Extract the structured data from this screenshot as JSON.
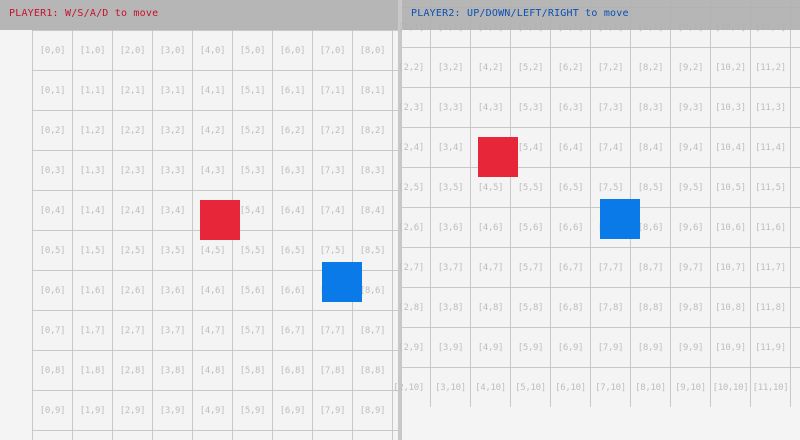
{
  "players": [
    {
      "id": "player1",
      "label": "PLAYER1: W/S/A/D to move",
      "label_color": "#c8102e",
      "color": "#e8263a",
      "cell_x": 4.2,
      "cell_y": 4.25
    },
    {
      "id": "player2",
      "label": "PLAYER2: UP/DOWN/LEFT/RIGHT to move",
      "label_color": "#0a50b4",
      "color": "#0a7ae8",
      "cell_x": 7.25,
      "cell_y": 5.8
    }
  ],
  "grid": {
    "line_color": "#c8c8c8",
    "label_color": "#bdbdbd",
    "background": "#f4f4f4",
    "label_format": "[col,row]",
    "views": [
      {
        "cols": [
          0,
          9
        ],
        "rows": [
          0,
          10
        ]
      },
      {
        "cols": [
          2,
          12
        ],
        "rows": [
          0,
          10
        ]
      }
    ]
  }
}
